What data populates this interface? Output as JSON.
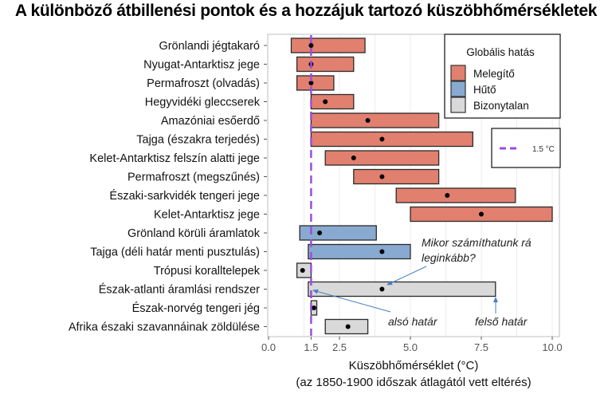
{
  "chart_data": {
    "type": "bar",
    "subtype": "horizontal-range",
    "title": "A különböző átbillenési pontok és a hozzájuk tartozó küszöbhőmérsékletek",
    "xlabel": "Küszöbhőmérséklet (°C)",
    "xlabel_sub": "(az 1850-1900 időszak átlagától vett eltérés)",
    "xlim": [
      0,
      10.2
    ],
    "xticks": [
      0.0,
      1.5,
      2.5,
      5.0,
      7.5,
      10.0
    ],
    "xtick_labels": [
      "0.0",
      "1.5",
      "2.5",
      "5.0",
      "7.5",
      "10.0"
    ],
    "grid": true,
    "reference_line": {
      "value": 1.5,
      "label": "1.5 °C",
      "color": "#9B4DE0",
      "style": "dashed"
    },
    "legend": {
      "title": "Globális hatás",
      "position": "upper right",
      "entries": [
        {
          "key": "warming",
          "label": "Melegítő",
          "color": "#E2806F"
        },
        {
          "key": "cooling",
          "label": "Hűtő",
          "color": "#89AAD0"
        },
        {
          "key": "uncertain",
          "label": "Bizonytalan",
          "color": "#D9D9D9"
        }
      ]
    },
    "items": [
      {
        "label": "Grönlandi jégtakaró",
        "min": 0.8,
        "max": 3.4,
        "central": 1.5,
        "impact": "warming"
      },
      {
        "label": "Nyugat-Antarktisz jege",
        "min": 1.0,
        "max": 3.0,
        "central": 1.5,
        "impact": "warming"
      },
      {
        "label": "Permafroszt (olvadás)",
        "min": 1.0,
        "max": 2.3,
        "central": 1.5,
        "impact": "warming"
      },
      {
        "label": "Hegyvidéki gleccserek",
        "min": 1.5,
        "max": 3.0,
        "central": 2.0,
        "impact": "warming"
      },
      {
        "label": "Amazóniai esőerdő",
        "min": 1.5,
        "max": 6.0,
        "central": 3.5,
        "impact": "warming"
      },
      {
        "label": "Tajga (északra terjedés)",
        "min": 1.5,
        "max": 7.2,
        "central": 4.0,
        "impact": "warming"
      },
      {
        "label": "Kelet-Antarktisz felszín alatti jege",
        "min": 2.0,
        "max": 6.0,
        "central": 3.0,
        "impact": "warming"
      },
      {
        "label": "Permafroszt (megszűnés)",
        "min": 3.0,
        "max": 6.0,
        "central": 4.0,
        "impact": "warming"
      },
      {
        "label": "Északi-sarkvidék tengeri jege",
        "min": 4.5,
        "max": 8.7,
        "central": 6.3,
        "impact": "warming"
      },
      {
        "label": "Kelet-Antarktisz jege",
        "min": 5.0,
        "max": 10.0,
        "central": 7.5,
        "impact": "warming"
      },
      {
        "label": "Grönland körüli áramlatok",
        "min": 1.1,
        "max": 3.8,
        "central": 1.8,
        "impact": "cooling"
      },
      {
        "label": "Tajga (déli határ menti pusztulás)",
        "min": 1.4,
        "max": 5.0,
        "central": 4.0,
        "impact": "cooling"
      },
      {
        "label": "Trópusi koralltelepek",
        "min": 1.0,
        "max": 1.5,
        "central": 1.2,
        "impact": "uncertain"
      },
      {
        "label": "Észak-atlanti áramlási rendszer",
        "min": 1.4,
        "max": 8.0,
        "central": 4.0,
        "impact": "uncertain"
      },
      {
        "label": "Észak-norvég tengeri jég",
        "min": 1.5,
        "max": 1.7,
        "central": 1.6,
        "impact": "uncertain"
      },
      {
        "label": "Afrika északi szavannáinak zöldülése",
        "min": 2.0,
        "max": 3.5,
        "central": 2.8,
        "impact": "uncertain"
      }
    ],
    "annotations": [
      {
        "text_lines": [
          "Mikor számíthatunk rá",
          "leginkább?"
        ],
        "points_to": "central"
      },
      {
        "text_lines": [
          "alsó határ"
        ],
        "points_to": "min"
      },
      {
        "text_lines": [
          "felső határ"
        ],
        "points_to": "max"
      }
    ]
  }
}
